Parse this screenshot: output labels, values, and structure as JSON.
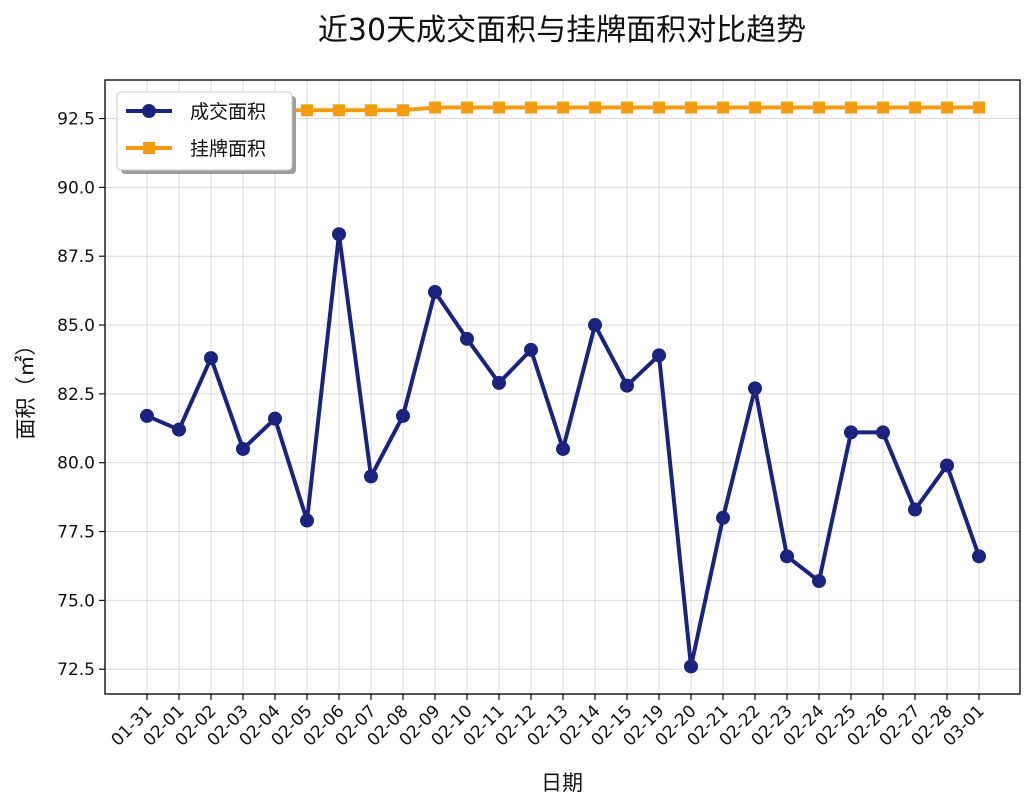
{
  "chart_data": {
    "type": "line",
    "title": "近30天成交面积与挂牌面积对比趋势",
    "xlabel": "日期",
    "ylabel": "面积（㎡）",
    "ylim": [
      71.6,
      93.9
    ],
    "yticks": [
      72.5,
      75.0,
      77.5,
      80.0,
      82.5,
      85.0,
      87.5,
      90.0,
      92.5
    ],
    "grid": true,
    "legend_position": "top-left",
    "categories": [
      "01-31",
      "02-01",
      "02-02",
      "02-03",
      "02-04",
      "02-05",
      "02-06",
      "02-07",
      "02-08",
      "02-09",
      "02-10",
      "02-11",
      "02-12",
      "02-13",
      "02-14",
      "02-15",
      "02-19",
      "02-20",
      "02-21",
      "02-22",
      "02-23",
      "02-24",
      "02-25",
      "02-26",
      "02-27",
      "02-28",
      "03-01"
    ],
    "series": [
      {
        "name": "成交面积",
        "color": "#1a237e",
        "marker": "circle",
        "values": [
          81.7,
          81.2,
          83.8,
          80.5,
          81.6,
          77.9,
          88.3,
          79.5,
          81.7,
          86.2,
          84.5,
          82.9,
          84.1,
          80.5,
          85.0,
          82.8,
          83.9,
          72.6,
          78.0,
          82.7,
          76.6,
          75.7,
          81.1,
          81.1,
          78.3,
          79.9,
          76.6
        ]
      },
      {
        "name": "挂牌面积",
        "color": "#f39c12",
        "marker": "square",
        "values": [
          92.8,
          92.8,
          92.8,
          92.8,
          92.8,
          92.8,
          92.8,
          92.8,
          92.8,
          92.9,
          92.9,
          92.9,
          92.9,
          92.9,
          92.9,
          92.9,
          92.9,
          92.9,
          92.9,
          92.9,
          92.9,
          92.9,
          92.9,
          92.9,
          92.9,
          92.9,
          92.9
        ]
      }
    ]
  }
}
